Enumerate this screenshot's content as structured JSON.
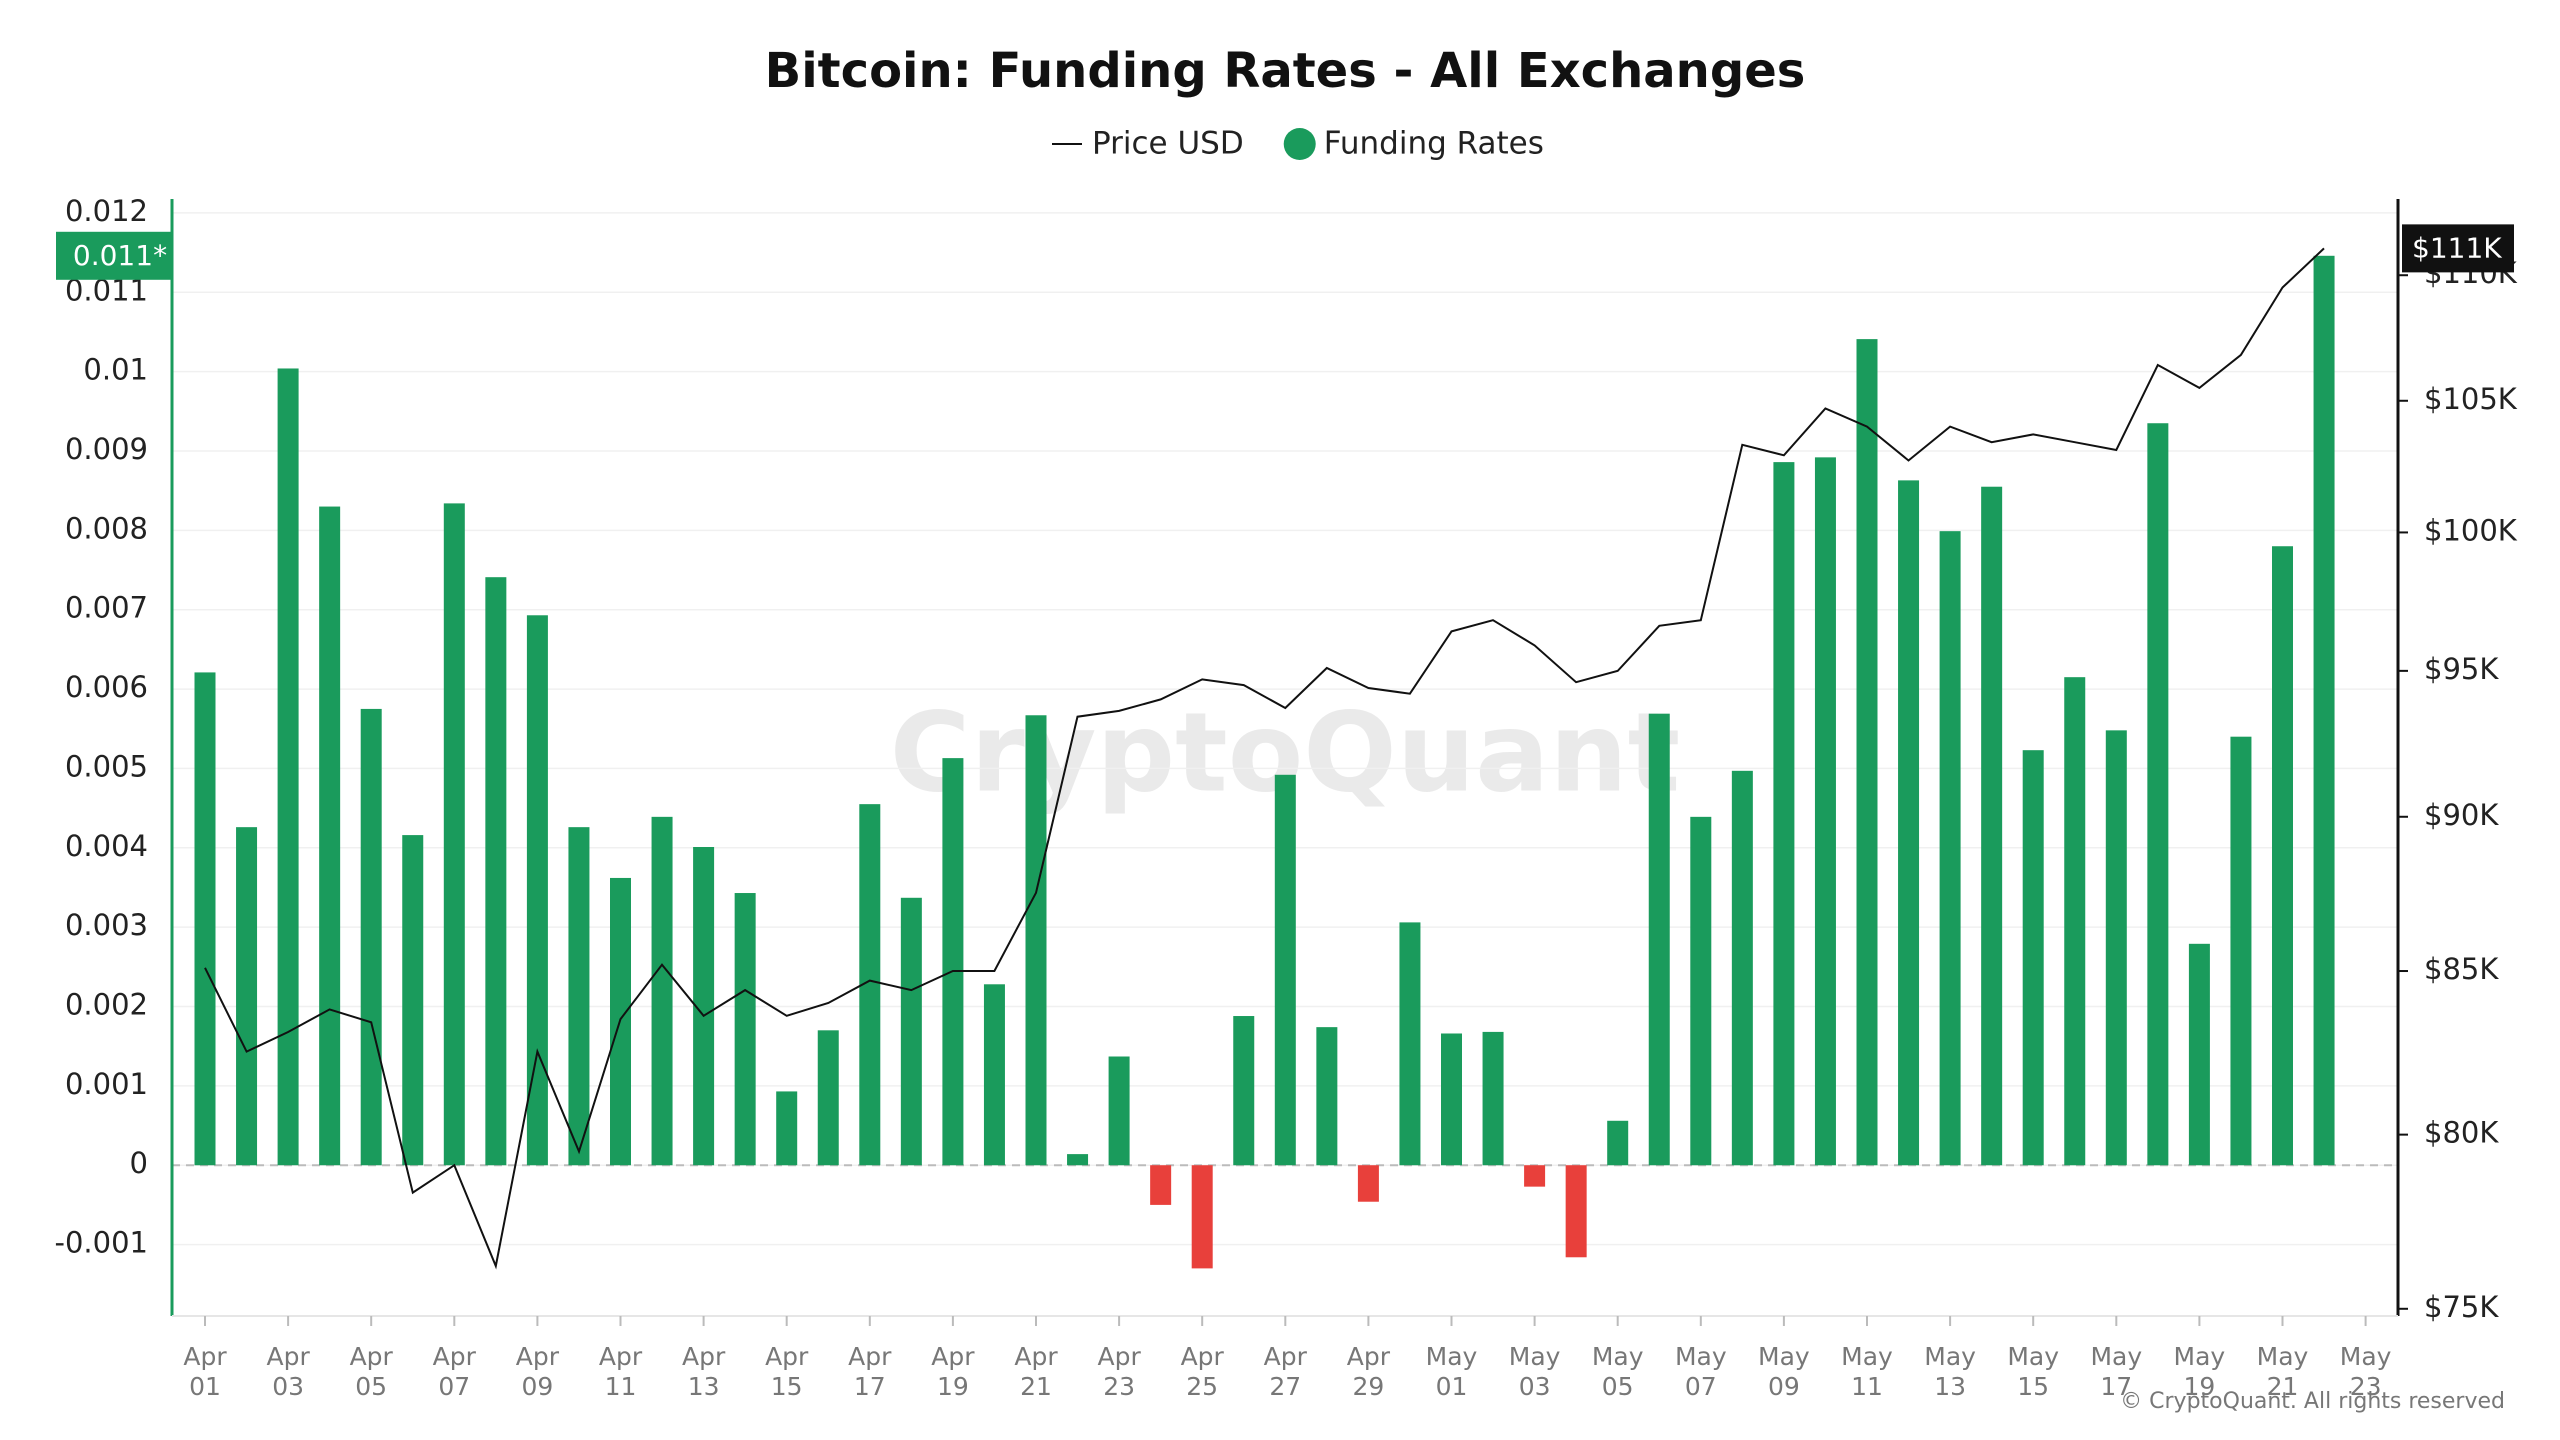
{
  "chart_data": {
    "type": "bar",
    "title": "Bitcoin: Funding Rates - All Exchanges",
    "watermark": "CryptoQuant",
    "copyright": "© CryptoQuant. All rights reserved",
    "categories": [
      "Apr 01",
      null,
      "Apr 03",
      null,
      "Apr 05",
      null,
      "Apr 07",
      null,
      "Apr 09",
      null,
      "Apr 11",
      null,
      "Apr 13",
      null,
      "Apr 15",
      null,
      "Apr 17",
      null,
      "Apr 19",
      null,
      "Apr 21",
      null,
      "Apr 23",
      null,
      "Apr 25",
      null,
      "Apr 27",
      null,
      "Apr 29",
      null,
      "May 01",
      null,
      "May 03",
      null,
      "May 05",
      null,
      "May 07",
      null,
      "May 09",
      null,
      "May 11",
      null,
      "May 13",
      null,
      "May 15",
      null,
      "May 17",
      null,
      "May 19",
      null,
      "May 21",
      null,
      "May 23"
    ],
    "series": [
      {
        "name": "Price USD",
        "type": "line",
        "axis": "y2",
        "color": "#111111",
        "last_label": "$111K",
        "values": [
          85100,
          82500,
          83100,
          83800,
          83400,
          78300,
          79100,
          76200,
          82500,
          79500,
          83500,
          85200,
          83600,
          84400,
          83600,
          84000,
          84700,
          84400,
          85000,
          85000,
          87500,
          93400,
          93600,
          94000,
          94700,
          94500,
          93700,
          95100,
          94400,
          94200,
          96400,
          96800,
          95900,
          94600,
          95000,
          96600,
          96800,
          103300,
          102900,
          104700,
          104000,
          102700,
          104000,
          103400,
          103700,
          103400,
          103100,
          106400,
          105500,
          106800,
          109500,
          111100,
          null
        ]
      },
      {
        "name": "Funding Rates",
        "type": "bar",
        "color": "#1a9b5c",
        "negative_color": "#e8403b",
        "last_label": "0.011*",
        "values": [
          0.00621,
          0.00426,
          0.01004,
          0.0083,
          0.00575,
          0.00416,
          0.00834,
          0.00741,
          0.00693,
          0.00426,
          0.00362,
          0.00439,
          0.00401,
          0.00343,
          0.00093,
          0.0017,
          0.00455,
          0.00337,
          0.00513,
          0.00228,
          0.00567,
          0.00014,
          0.00137,
          -0.0005,
          -0.0013,
          0.00188,
          0.00492,
          0.00174,
          -0.00046,
          0.00306,
          0.00166,
          0.00168,
          -0.00027,
          -0.00116,
          0.00056,
          0.00569,
          0.00439,
          0.00497,
          0.00886,
          0.00892,
          0.01041,
          0.00863,
          0.00799,
          0.00855,
          0.00523,
          0.00615,
          0.00548,
          0.00935,
          0.00279,
          0.0054,
          0.0078,
          0.01146,
          null
        ]
      }
    ],
    "ylim": [
      -0.0019,
      0.0121
    ],
    "yticks": [
      -0.001,
      0,
      0.001,
      0.002,
      0.003,
      0.004,
      0.005,
      0.006,
      0.007,
      0.008,
      0.009,
      0.01,
      0.011,
      0.012
    ],
    "y2lim": [
      74800,
      112900
    ],
    "y2_log": true,
    "y2ticks": [
      {
        "value": 75000,
        "label": "$75K"
      },
      {
        "value": 80000,
        "label": "$80K"
      },
      {
        "value": 85000,
        "label": "$85K"
      },
      {
        "value": 90000,
        "label": "$90K"
      },
      {
        "value": 95000,
        "label": "$95K"
      },
      {
        "value": 100000,
        "label": "$100K"
      },
      {
        "value": 105000,
        "label": "$105K"
      },
      {
        "value": 110000,
        "label": "$110K"
      }
    ],
    "grid": true,
    "legend": "top"
  }
}
